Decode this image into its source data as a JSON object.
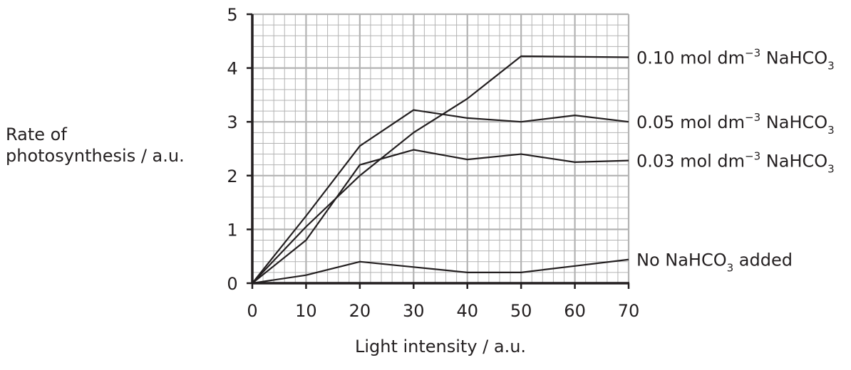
{
  "chart_data": {
    "type": "line",
    "title": "",
    "xlabel": "Light intensity / a.u.",
    "ylabel_lines": [
      "Rate of",
      "photosynthesis / a.u."
    ],
    "xlim": [
      0,
      70
    ],
    "ylim": [
      0,
      5
    ],
    "xticks": [
      0,
      10,
      20,
      30,
      40,
      50,
      60,
      70
    ],
    "yticks": [
      0,
      1,
      2,
      3,
      4,
      5
    ],
    "grid": true,
    "minor_divisions": 5,
    "series": [
      {
        "name": "0.10 mol dm⁻³ NaHCO₃",
        "label_parts": {
          "main": "0.10 mol dm",
          "sup": "−3",
          "mid": " NaHCO",
          "sub": "3",
          "end": ""
        },
        "x": [
          0,
          10,
          20,
          30,
          40,
          50,
          60,
          70
        ],
        "y": [
          0,
          1.05,
          2.0,
          2.8,
          3.43,
          4.22,
          4.21,
          4.2
        ]
      },
      {
        "name": "0.05 mol dm⁻³ NaHCO₃",
        "label_parts": {
          "main": "0.05 mol dm",
          "sup": "−3",
          "mid": " NaHCO",
          "sub": "3",
          "end": ""
        },
        "x": [
          0,
          10,
          20,
          30,
          40,
          50,
          60,
          70
        ],
        "y": [
          0,
          1.25,
          2.55,
          3.22,
          3.07,
          3.0,
          3.12,
          3.0
        ]
      },
      {
        "name": "0.03 mol dm⁻³ NaHCO₃",
        "label_parts": {
          "main": "0.03 mol dm",
          "sup": "−3",
          "mid": " NaHCO",
          "sub": "3",
          "end": ""
        },
        "x": [
          0,
          10,
          20,
          30,
          40,
          50,
          60,
          70
        ],
        "y": [
          0,
          0.8,
          2.2,
          2.48,
          2.3,
          2.4,
          2.25,
          2.28
        ]
      },
      {
        "name": "No NaHCO₃ added",
        "label_parts": {
          "main": "No NaHCO",
          "sup": "",
          "mid": "",
          "sub": "3",
          "end": " added"
        },
        "x": [
          0,
          10,
          20,
          30,
          40,
          50,
          60,
          70
        ],
        "y": [
          0,
          0.15,
          0.4,
          0.3,
          0.2,
          0.2,
          0.32,
          0.44
        ]
      }
    ],
    "line_color": "#231f20",
    "grid_color": "#b3b3b3"
  }
}
